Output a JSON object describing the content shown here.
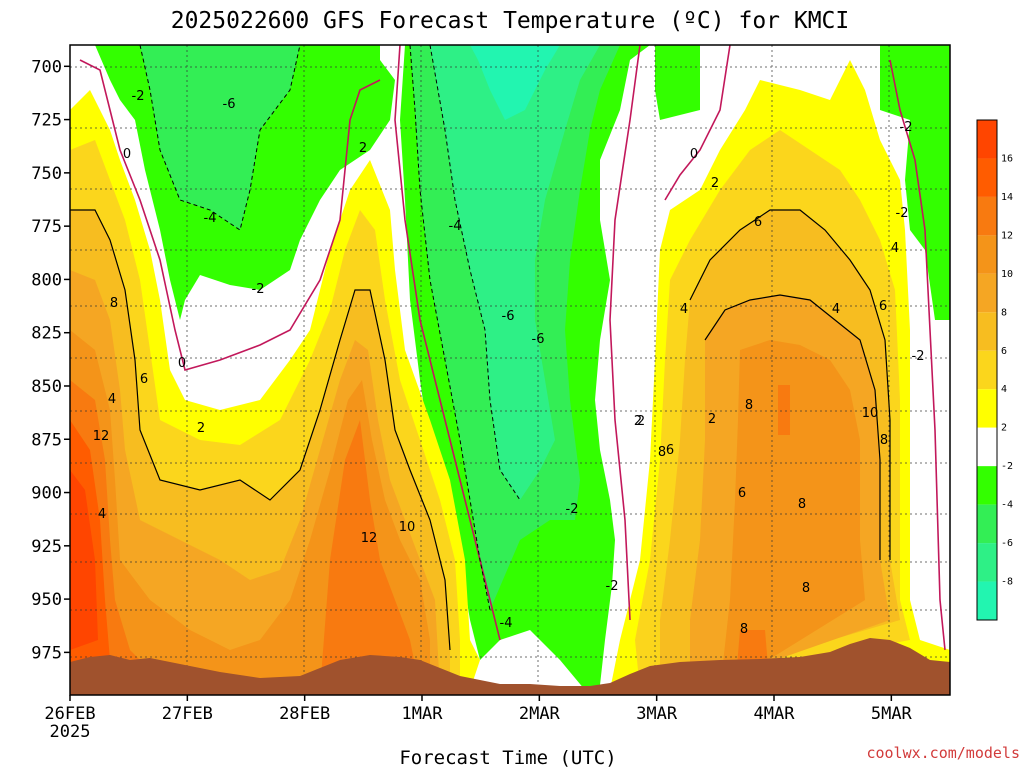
{
  "chart_data": {
    "type": "heatmap",
    "title": "2025022600 GFS Forecast Temperature (ºC) for KMCI",
    "xlabel": "Forecast Time (UTC)",
    "ylabel": "",
    "credit": "coolwx.com/models",
    "y_axis": {
      "ticks": [
        "700",
        "725",
        "750",
        "775",
        "800",
        "825",
        "850",
        "875",
        "900",
        "925",
        "950",
        "975"
      ],
      "reversed": true,
      "range": [
        690,
        995
      ]
    },
    "x_axis": {
      "ticks": [
        {
          "label": "26FEB",
          "sub": "2025",
          "day": 0
        },
        {
          "label": "27FEB",
          "sub": "",
          "day": 1
        },
        {
          "label": "28FEB",
          "sub": "",
          "day": 2
        },
        {
          "label": "1MAR",
          "sub": "",
          "day": 3
        },
        {
          "label": "2MAR",
          "sub": "",
          "day": 4
        },
        {
          "label": "3MAR",
          "sub": "",
          "day": 5
        },
        {
          "label": "4MAR",
          "sub": "",
          "day": 6
        },
        {
          "label": "5MAR",
          "sub": "",
          "day": 7
        }
      ],
      "range": [
        0,
        7.5
      ]
    },
    "grid": true,
    "colorbar": {
      "bins": [
        {
          "lo": 16,
          "hi": 18,
          "color": "#ff4500"
        },
        {
          "lo": 14,
          "hi": 16,
          "color": "#ff5c00"
        },
        {
          "lo": 12,
          "hi": 14,
          "color": "#f87a10"
        },
        {
          "lo": 10,
          "hi": 12,
          "color": "#f49419"
        },
        {
          "lo": 8,
          "hi": 10,
          "color": "#f5a623"
        },
        {
          "lo": 6,
          "hi": 8,
          "color": "#f7bd20"
        },
        {
          "lo": 4,
          "hi": 6,
          "color": "#fbd61c"
        },
        {
          "lo": 2,
          "hi": 4,
          "color": "#ffff00"
        },
        {
          "lo": -2,
          "hi": 2,
          "color": "#ffffff"
        },
        {
          "lo": -4,
          "hi": -2,
          "color": "#33ff00"
        },
        {
          "lo": -6,
          "hi": -4,
          "color": "#33ee55"
        },
        {
          "lo": -8,
          "hi": -6,
          "color": "#2ef086"
        },
        {
          "lo": -10,
          "hi": -8,
          "color": "#22f5b0"
        }
      ],
      "ticks": [
        "16",
        "14",
        "12",
        "10",
        "8",
        "6",
        "4",
        "2",
        "-2",
        "-4",
        "-6",
        "-8"
      ]
    },
    "ground_color": "#a0522d",
    "contour_labels": [
      "-2",
      "-6",
      "0",
      "-4",
      "-2",
      "2",
      "0",
      "-4",
      "-2",
      "-6",
      "-6",
      "-4",
      "2",
      "0",
      "2",
      "-2",
      "6",
      "4",
      "6",
      "8",
      "4",
      "8",
      "12",
      "4",
      "12",
      "10",
      "8",
      "6",
      "4",
      "2",
      "2",
      "2",
      "6",
      "8",
      "6",
      "4",
      "8",
      "10",
      "8",
      "8",
      "-2",
      "-2",
      "-2"
    ]
  }
}
